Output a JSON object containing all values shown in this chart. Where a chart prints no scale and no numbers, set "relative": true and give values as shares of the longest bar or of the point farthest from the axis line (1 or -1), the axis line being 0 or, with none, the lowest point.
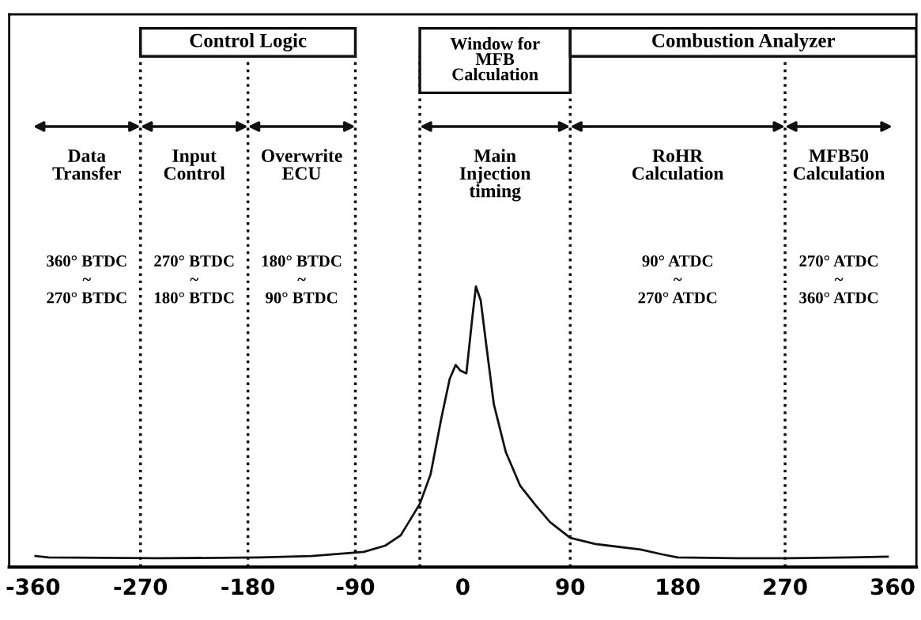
{
  "chart_data": {
    "type": "line",
    "relative": true,
    "x": [
      -358,
      -347,
      -256,
      -170,
      -127,
      -83,
      -65,
      -52,
      -36,
      -27,
      -18,
      -11,
      -6,
      -2,
      3,
      8,
      11,
      15,
      20,
      26,
      36,
      48,
      61,
      73,
      90,
      111,
      149,
      167,
      180,
      230,
      272,
      324,
      356
    ],
    "series": [
      {
        "color": "#111111",
        "values": [
          0.039,
          0.034,
          0.031,
          0.034,
          0.039,
          0.054,
          0.076,
          0.113,
          0.225,
          0.33,
          0.53,
          0.67,
          0.72,
          0.7,
          0.69,
          0.89,
          1.0,
          0.95,
          0.78,
          0.58,
          0.41,
          0.29,
          0.22,
          0.16,
          0.104,
          0.082,
          0.062,
          0.045,
          0.034,
          0.031,
          0.031,
          0.034,
          0.037
        ]
      }
    ],
    "xlim": [
      -380,
      380
    ],
    "xticks": [
      -360,
      -270,
      -180,
      -90,
      0,
      90,
      180,
      270,
      360
    ],
    "grid": false,
    "marker": "none",
    "line_style": "solid",
    "ref_lines": [
      {
        "axis": "x",
        "value": -270,
        "line_style": "dotted"
      },
      {
        "axis": "x",
        "value": -180,
        "line_style": "dotted"
      },
      {
        "axis": "x",
        "value": -90,
        "line_style": "dotted"
      },
      {
        "axis": "x",
        "value": -36,
        "line_style": "dotted"
      },
      {
        "axis": "x",
        "value": 90,
        "line_style": "dotted"
      },
      {
        "axis": "x",
        "value": 270,
        "line_style": "dotted"
      }
    ],
    "annotations": [
      "Control Logic",
      "Window for\nMFB\nCalculation",
      "Combustion Analyzer",
      "Data\nTransfer",
      "Input\nControl",
      "Overwrite\nECU",
      "Main\nInjection\ntiming",
      "RoHR\nCalculation",
      "MFB50\nCalculation",
      "360° BTDC\n~\n270° BTDC",
      "270° BTDC\n~\n180° BTDC",
      "180° BTDC\n~\n90° BTDC",
      "90° ATDC\n~\n270° ATDC",
      "270° ATDC\n~\n360° ATDC"
    ]
  }
}
